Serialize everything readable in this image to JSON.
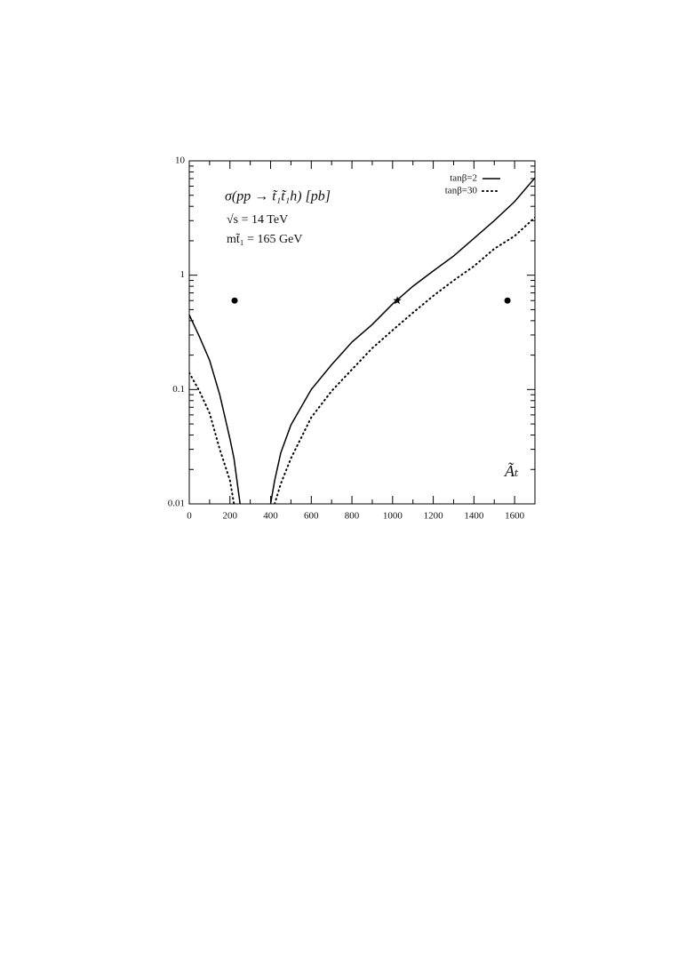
{
  "chart_data": {
    "type": "line",
    "annotations": [
      "σ(pp → t̃₁t̃₁h) [pb]",
      "√s = 14 TeV",
      "mt̃₁ = 165 GeV"
    ],
    "x_label": "Ãₜ",
    "x": [
      0,
      50,
      100,
      150,
      200,
      220,
      250,
      300,
      400,
      420,
      450,
      500,
      600,
      700,
      800,
      900,
      1000,
      1100,
      1200,
      1300,
      1400,
      1500,
      1600,
      1700
    ],
    "series": [
      {
        "name": "tanβ=2",
        "color": "#000000",
        "style": "solid",
        "values": [
          0.45,
          0.29,
          0.18,
          0.09,
          0.037,
          0.025,
          0.01,
          null,
          0.01,
          0.016,
          0.028,
          0.049,
          0.1,
          0.165,
          0.26,
          0.37,
          0.56,
          0.8,
          1.09,
          1.47,
          2.1,
          3.0,
          4.4,
          7.1
        ]
      },
      {
        "name": "tanβ=30",
        "color": "#000000",
        "style": "dotted",
        "values": [
          0.14,
          0.097,
          0.062,
          0.03,
          0.016,
          0.01,
          null,
          null,
          null,
          0.01,
          0.015,
          0.025,
          0.057,
          0.097,
          0.15,
          0.23,
          0.33,
          0.47,
          0.66,
          0.9,
          1.2,
          1.7,
          2.2,
          3.2
        ]
      }
    ],
    "markers": [
      {
        "symbol": "dot",
        "x": 223,
        "y": 0.6
      },
      {
        "symbol": "star",
        "x": 1023,
        "y": 0.6
      },
      {
        "symbol": "dot",
        "x": 1565,
        "y": 0.6
      }
    ],
    "xlim": [
      0,
      1700
    ],
    "xticks": [
      0,
      200,
      400,
      600,
      800,
      1000,
      1200,
      1400,
      1600
    ],
    "ylim": [
      0.01,
      10
    ],
    "yticks": [
      0.01,
      0.1,
      1,
      10
    ],
    "log_y": true,
    "legend": "upper right"
  }
}
